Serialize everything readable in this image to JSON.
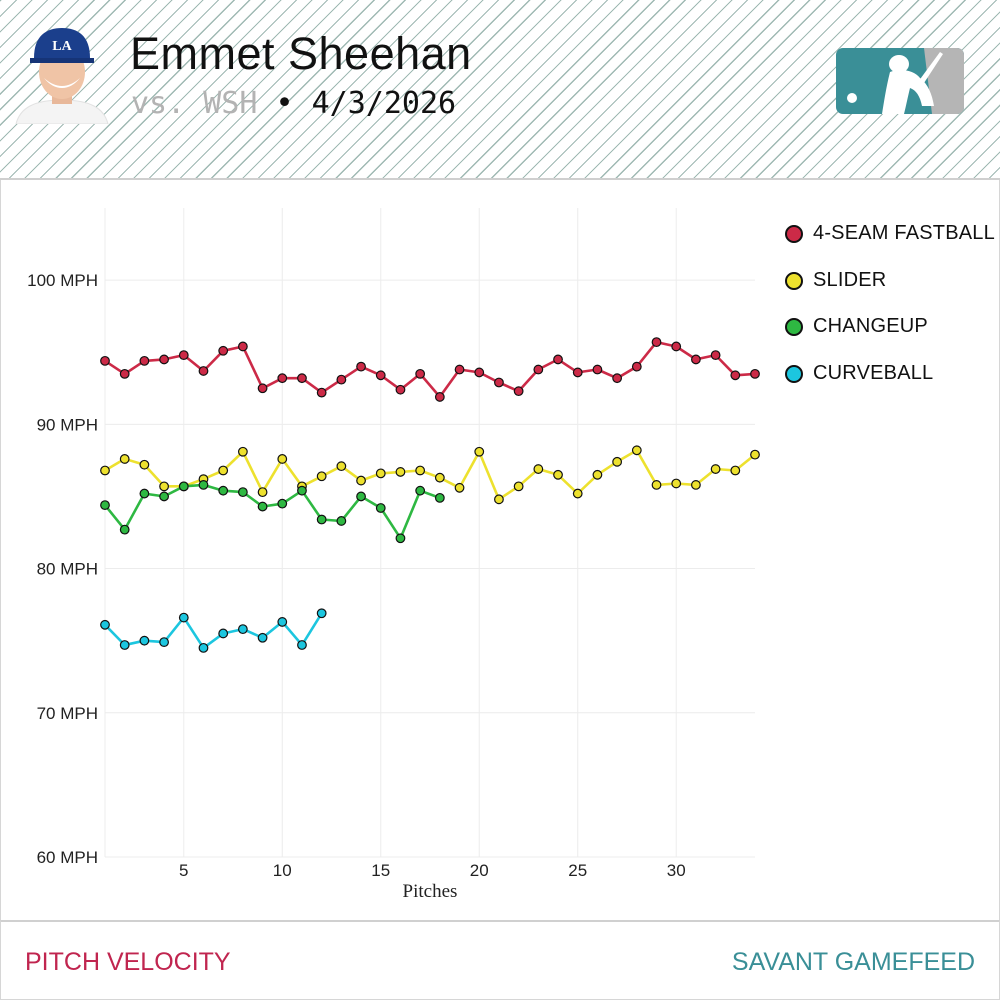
{
  "header": {
    "player_name": "Emmet Sheehan",
    "opponent": "vs. WSH",
    "separator": "•",
    "date": "4/3/2026",
    "team_cap_letters": "LA"
  },
  "colors": {
    "four_seam": "#cc2a47",
    "slider": "#ede12e",
    "changeup": "#2eb842",
    "curveball": "#1cc6df",
    "logo_teal": "#3a8f97",
    "logo_gray": "#b5b5b5",
    "footer_left": "#c0254f",
    "footer_right": "#3a8f97"
  },
  "chart_data": {
    "type": "line",
    "title": "Pitch Velocity",
    "xlabel": "Pitches",
    "ylabel": "",
    "xlim": [
      1,
      34
    ],
    "ylim": [
      60,
      105
    ],
    "xticks": [
      5,
      10,
      15,
      20,
      25,
      30
    ],
    "yticks": [
      60,
      70,
      80,
      90,
      100
    ],
    "ytick_labels": [
      "60 MPH",
      "70 MPH",
      "80 MPH",
      "90 MPH",
      "100 MPH"
    ],
    "grid": true,
    "legend_position": "top-right",
    "series": [
      {
        "name": "4-SEAM FASTBALL",
        "color": "#cc2a47",
        "x": [
          1,
          2,
          3,
          4,
          5,
          6,
          7,
          8,
          9,
          10,
          11,
          12,
          13,
          14,
          15,
          16,
          17,
          18,
          19,
          20,
          21,
          22,
          23,
          24,
          25,
          26,
          27,
          28,
          29,
          30,
          31,
          32,
          33,
          34
        ],
        "values": [
          94.4,
          93.5,
          94.4,
          94.5,
          94.8,
          93.7,
          95.1,
          95.4,
          92.5,
          93.2,
          93.2,
          92.2,
          93.1,
          94.0,
          93.4,
          92.4,
          93.5,
          91.9,
          93.8,
          93.6,
          92.9,
          92.3,
          93.8,
          94.5,
          93.6,
          93.8,
          93.2,
          94.0,
          95.7,
          95.4,
          94.5,
          94.8,
          93.4,
          93.5
        ]
      },
      {
        "name": "SLIDER",
        "color": "#ede12e",
        "x": [
          1,
          2,
          3,
          4,
          5,
          6,
          7,
          8,
          9,
          10,
          11,
          12,
          13,
          14,
          15,
          16,
          17,
          18,
          19,
          20,
          21,
          22,
          23,
          24,
          25,
          26,
          27,
          28,
          29,
          30,
          31,
          32,
          33,
          34
        ],
        "values": [
          86.8,
          87.6,
          87.2,
          85.7,
          85.7,
          86.2,
          86.8,
          88.1,
          85.3,
          87.6,
          85.7,
          86.4,
          87.1,
          86.1,
          86.6,
          86.7,
          86.8,
          86.3,
          85.6,
          88.1,
          84.8,
          85.7,
          86.9,
          86.5,
          85.2,
          86.5,
          87.4,
          88.2,
          85.8,
          85.9,
          85.8,
          86.9,
          86.8,
          87.9
        ]
      },
      {
        "name": "CHANGEUP",
        "color": "#2eb842",
        "x": [
          1,
          2,
          3,
          4,
          5,
          6,
          7,
          8,
          9,
          10,
          11,
          12,
          13,
          14,
          15,
          16,
          17,
          18
        ],
        "values": [
          84.4,
          82.7,
          85.2,
          85.0,
          85.7,
          85.8,
          85.4,
          85.3,
          84.3,
          84.5,
          85.4,
          83.4,
          83.3,
          85.0,
          84.2,
          82.1,
          85.4,
          84.9
        ]
      },
      {
        "name": "CURVEBALL",
        "color": "#1cc6df",
        "x": [
          1,
          2,
          3,
          4,
          5,
          6,
          7,
          8,
          9,
          10,
          11,
          12
        ],
        "values": [
          76.1,
          74.7,
          75.0,
          74.9,
          76.6,
          74.5,
          75.5,
          75.8,
          75.2,
          76.3,
          74.7,
          76.9
        ]
      }
    ]
  },
  "footer": {
    "left": "PITCH VELOCITY",
    "right": "SAVANT GAMEFEED"
  }
}
